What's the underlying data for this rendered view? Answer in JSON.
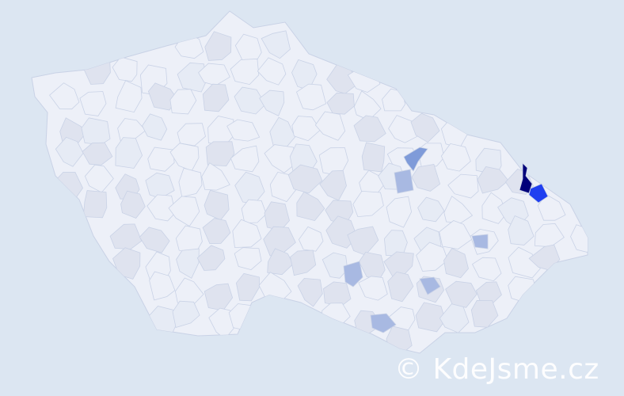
{
  "watermark": "© KdeJsme.cz",
  "colors": {
    "background": "#dce6f2",
    "base_region": "#edf0f8",
    "region_border": "#c9d2e6",
    "level_low": "#dfe3ef",
    "level_mid_light": "#c3cde8",
    "level_mid": "#a8b9e2",
    "level_high": "#7f9bd9",
    "level_very_high": "#1f3ff0",
    "level_max": "#00007a"
  },
  "regions_highlighted": [
    {
      "level": "max"
    },
    {
      "level": "very_high"
    },
    {
      "level": "high"
    },
    {
      "level": "mid"
    },
    {
      "level": "mid"
    },
    {
      "level": "mid"
    },
    {
      "level": "mid"
    },
    {
      "level": "mid"
    }
  ]
}
